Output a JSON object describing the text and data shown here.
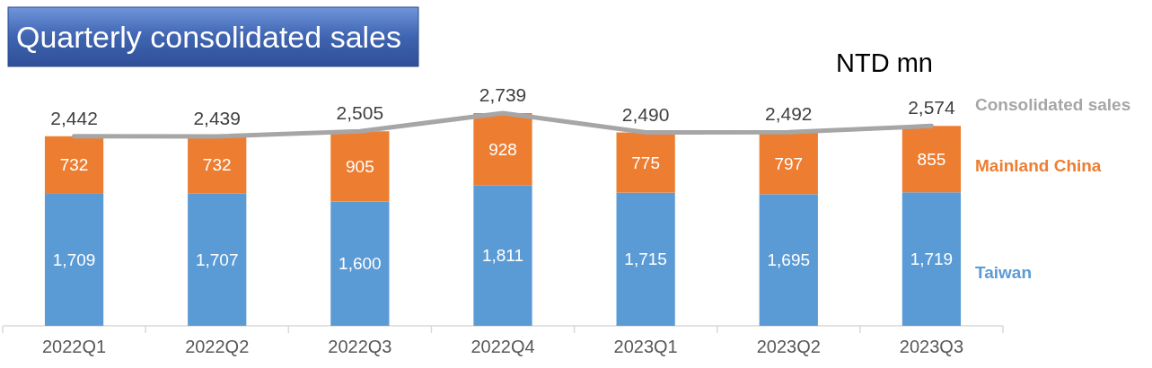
{
  "chart_data": {
    "type": "bar",
    "stacked": true,
    "title": "Quarterly consolidated sales",
    "annotations": [
      "NTD mn"
    ],
    "categories": [
      "2022Q1",
      "2022Q2",
      "2022Q3",
      "2022Q4",
      "2023Q1",
      "2023Q2",
      "2023Q3"
    ],
    "series": [
      {
        "name": "Taiwan",
        "color": "#5b9bd5",
        "values": [
          1709,
          1707,
          1600,
          1811,
          1715,
          1695,
          1719
        ],
        "value_labels": [
          "1,709",
          "1,707",
          "1,600",
          "1,811",
          "1,715",
          "1,695",
          "1,719"
        ]
      },
      {
        "name": "Mainland China",
        "color": "#ed7d31",
        "values": [
          732,
          732,
          905,
          928,
          775,
          797,
          855
        ],
        "value_labels": [
          "732",
          "732",
          "905",
          "928",
          "775",
          "797",
          "855"
        ]
      },
      {
        "name": "Consolidated sales",
        "type": "line",
        "color": "#a6a6a6",
        "values": [
          2442,
          2439,
          2505,
          2739,
          2490,
          2492,
          2574
        ],
        "value_labels": [
          "2,442",
          "2,439",
          "2,505",
          "2,739",
          "2,490",
          "2,492",
          "2,574"
        ]
      }
    ],
    "legend": "right"
  }
}
